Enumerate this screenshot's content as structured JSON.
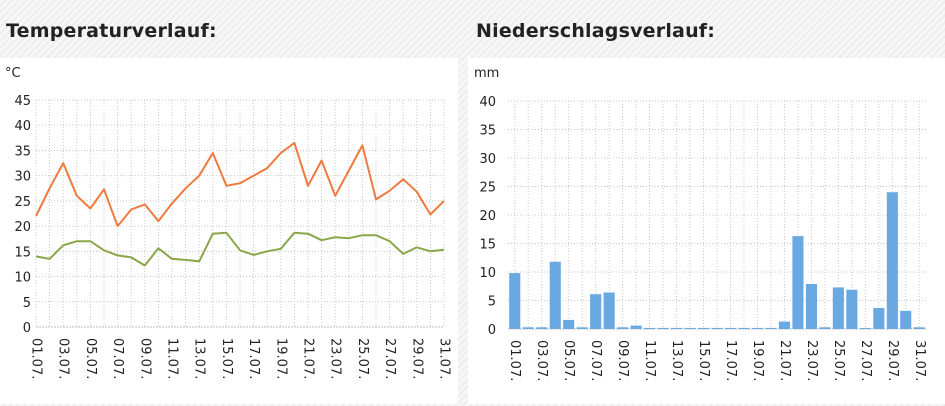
{
  "headings": {
    "temperature": "Temperaturverlauf:",
    "precipitation": "Niederschlagsverlauf:"
  },
  "chart_data": [
    {
      "type": "line",
      "title": "Temperaturverlauf:",
      "ylabel": "°C",
      "ylim": [
        0,
        45
      ],
      "yticks": [
        0,
        5,
        10,
        15,
        20,
        25,
        30,
        35,
        40,
        45
      ],
      "grid": true,
      "x_tick_labels": [
        "01.07.",
        "03.07.",
        "05.07.",
        "07.07.",
        "09.07.",
        "11.07.",
        "13.07.",
        "15.07.",
        "17.07.",
        "19.07.",
        "21.07.",
        "23.07.",
        "25.07.",
        "27.07.",
        "29.07.",
        "31.07."
      ],
      "series": [
        {
          "color": "#ef7a3e",
          "values": [
            22,
            27.5,
            32.5,
            26,
            23.5,
            27.3,
            20,
            23.3,
            24.3,
            21,
            24.5,
            27.5,
            30,
            34.5,
            28,
            28.5,
            30,
            31.5,
            34.5,
            36.5,
            28,
            33,
            26,
            31,
            36,
            25.3,
            27,
            29.3,
            26.8,
            22.3,
            25
          ]
        },
        {
          "color": "#8aa64a",
          "values": [
            14,
            13.5,
            16.2,
            17,
            17,
            15.2,
            14.2,
            13.8,
            12.2,
            15.6,
            13.5,
            13.3,
            13,
            18.5,
            18.7,
            15.2,
            14.3,
            15,
            15.5,
            18.7,
            18.5,
            17.2,
            17.8,
            17.6,
            18.2,
            18.2,
            17,
            14.5,
            15.8,
            15,
            15.3
          ]
        }
      ]
    },
    {
      "type": "bar",
      "title": "Niederschlagsverlauf:",
      "ylabel": "mm",
      "ylim": [
        0,
        40
      ],
      "yticks": [
        0,
        5,
        10,
        15,
        20,
        25,
        30,
        35,
        40
      ],
      "grid": true,
      "color": "#6aa8e2",
      "x_tick_labels": [
        "01.07.",
        "03.07.",
        "05.07.",
        "07.07.",
        "09.07.",
        "11.07.",
        "13.07.",
        "15.07.",
        "17.07.",
        "19.07.",
        "21.07.",
        "23.07.",
        "25.07.",
        "27.07.",
        "29.07.",
        "31.07."
      ],
      "values": [
        9.8,
        0.3,
        0.3,
        11.8,
        1.6,
        0.3,
        6.1,
        6.4,
        0.3,
        0.6,
        0.2,
        0.2,
        0.2,
        0.2,
        0.2,
        0.2,
        0.2,
        0.2,
        0.2,
        0.2,
        1.3,
        16.3,
        7.9,
        0.3,
        7.3,
        6.9,
        0.2,
        3.7,
        24,
        3.2,
        0.3
      ]
    }
  ]
}
